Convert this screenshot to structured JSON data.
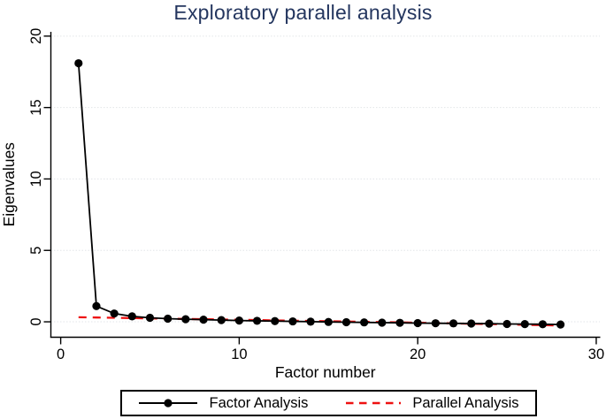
{
  "title": "Exploratory parallel analysis",
  "colors": {
    "title": "#24365f",
    "axis": "#000000",
    "grid": "#e2e5e8",
    "factor_analysis": "#000000",
    "parallel_analysis": "#ee1111",
    "background": "#ffffff",
    "legend_border": "#000000"
  },
  "chart_data": {
    "type": "line",
    "title": "Exploratory parallel analysis",
    "xlabel": "Factor number",
    "ylabel": "Eigenvalues",
    "x_ticks": [
      0,
      10,
      20,
      30
    ],
    "y_ticks": [
      0,
      5,
      10,
      15,
      20
    ],
    "xlim": [
      -0.55,
      30.2
    ],
    "ylim": [
      -1.08,
      20.3
    ],
    "grid": true,
    "legend_position": "bottom",
    "x": [
      1,
      2,
      3,
      4,
      5,
      6,
      7,
      8,
      9,
      10,
      11,
      12,
      13,
      14,
      15,
      16,
      17,
      18,
      19,
      20,
      21,
      22,
      23,
      24,
      25,
      26,
      27,
      28
    ],
    "series": [
      {
        "name": "Factor Analysis",
        "style": "solid-circle-markers",
        "values": [
          18.1,
          1.1,
          0.58,
          0.38,
          0.28,
          0.22,
          0.18,
          0.15,
          0.12,
          0.09,
          0.07,
          0.05,
          0.03,
          0.01,
          -0.01,
          -0.03,
          -0.04,
          -0.06,
          -0.07,
          -0.09,
          -0.1,
          -0.11,
          -0.12,
          -0.13,
          -0.15,
          -0.16,
          -0.17,
          -0.19
        ]
      },
      {
        "name": "Parallel Analysis",
        "style": "dashed",
        "values": [
          0.32,
          0.3,
          0.28,
          0.26,
          0.24,
          0.22,
          0.2,
          0.18,
          0.16,
          0.14,
          0.12,
          0.1,
          0.08,
          0.06,
          0.04,
          0.02,
          0.0,
          -0.02,
          -0.04,
          -0.07,
          -0.09,
          -0.11,
          -0.14,
          -0.16,
          -0.18,
          -0.21,
          -0.23,
          -0.26
        ]
      }
    ]
  },
  "legend": {
    "items": [
      {
        "label": "Factor Analysis"
      },
      {
        "label": "Parallel Analysis"
      }
    ]
  }
}
